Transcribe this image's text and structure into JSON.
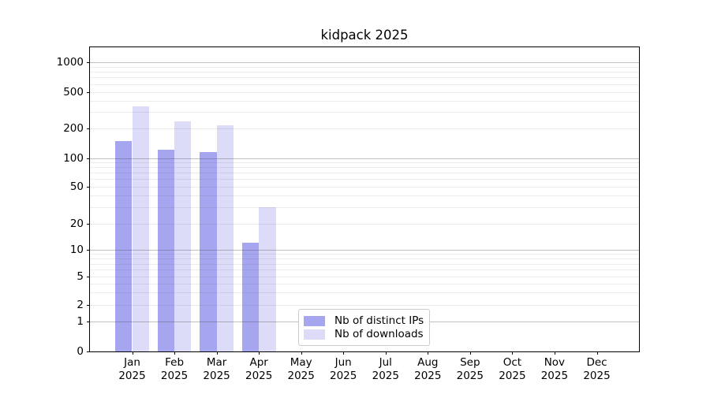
{
  "chart_data": {
    "type": "bar",
    "title": "kidpack 2025",
    "x_categories": [
      "Jan",
      "Feb",
      "Mar",
      "Apr",
      "May",
      "Jun",
      "Jul",
      "Aug",
      "Sep",
      "Oct",
      "Nov",
      "Dec"
    ],
    "x_year_label": "2025",
    "series": [
      {
        "name": "Nb of distinct IPs",
        "slug": "distinct-ips",
        "color": "#a5a5f0",
        "values": [
          150,
          122,
          115,
          12,
          0,
          0,
          0,
          0,
          0,
          0,
          0,
          0
        ]
      },
      {
        "name": "Nb of downloads",
        "slug": "downloads",
        "color": "#dcdcf9",
        "values": [
          350,
          240,
          215,
          30,
          0,
          0,
          0,
          0,
          0,
          0,
          0,
          0
        ]
      }
    ],
    "yscale": "symlog",
    "ylim": [
      0,
      1500
    ],
    "yticks": [
      0,
      1,
      2,
      5,
      10,
      20,
      50,
      100,
      200,
      500,
      1000
    ],
    "y_major_gridlines": [
      1,
      10,
      100,
      1000
    ],
    "y_minor_gridlines": [
      3,
      4,
      6,
      7,
      8,
      9,
      30,
      40,
      60,
      70,
      80,
      90,
      300,
      400,
      600,
      700,
      800,
      900
    ],
    "grid": true,
    "legend": {
      "position": "lower center-left",
      "border_color": "#cccccc"
    },
    "colors": {
      "background": "#ffffff",
      "axis": "#000000",
      "text": "#000000"
    }
  }
}
